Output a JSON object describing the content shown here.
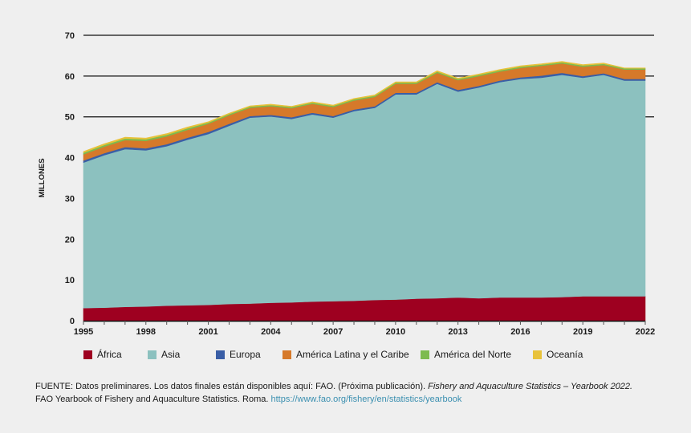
{
  "chart_data": {
    "type": "area",
    "stacked": true,
    "title": "",
    "xlabel": "",
    "ylabel": "MILLONES",
    "ylim": [
      0,
      70
    ],
    "yticks": [
      0,
      10,
      20,
      30,
      40,
      50,
      60,
      70
    ],
    "xlim": [
      1995,
      2022
    ],
    "xtick_labels": [
      "1995",
      "1998",
      "2001",
      "2004",
      "2007",
      "2010",
      "2013",
      "2016",
      "2019",
      "2022"
    ],
    "grid": "horizontal at 50, 60, 70",
    "legend_position": "bottom",
    "x": [
      1995,
      1996,
      1997,
      1998,
      1999,
      2000,
      2001,
      2002,
      2003,
      2004,
      2005,
      2006,
      2007,
      2008,
      2009,
      2010,
      2011,
      2012,
      2013,
      2014,
      2015,
      2016,
      2017,
      2018,
      2019,
      2020,
      2021,
      2022
    ],
    "series": [
      {
        "name": "África",
        "color": "#9e0020",
        "values": [
          3.1,
          3.2,
          3.4,
          3.5,
          3.7,
          3.8,
          3.9,
          4.1,
          4.2,
          4.4,
          4.5,
          4.7,
          4.8,
          4.9,
          5.1,
          5.2,
          5.4,
          5.5,
          5.7,
          5.5,
          5.7,
          5.7,
          5.7,
          5.8,
          6.0,
          6.0,
          6.0,
          6.0
        ]
      },
      {
        "name": "Asia",
        "color": "#8cc1bf",
        "values": [
          35.7,
          37.4,
          38.7,
          38.3,
          39.1,
          40.6,
          41.9,
          43.7,
          45.6,
          45.7,
          45.0,
          45.9,
          45.0,
          46.5,
          47.1,
          50.3,
          50.1,
          52.6,
          50.5,
          51.7,
          52.8,
          53.6,
          53.9,
          54.5,
          53.6,
          54.3,
          52.9,
          52.9
        ]
      },
      {
        "name": "Europa",
        "color": "#3a5ea6",
        "values": [
          0.5,
          0.5,
          0.5,
          0.5,
          0.5,
          0.5,
          0.5,
          0.5,
          0.4,
          0.4,
          0.4,
          0.4,
          0.4,
          0.4,
          0.4,
          0.4,
          0.4,
          0.4,
          0.4,
          0.4,
          0.4,
          0.4,
          0.5,
          0.5,
          0.4,
          0.4,
          0.4,
          0.4
        ]
      },
      {
        "name": "América Latina y el Caribe",
        "color": "#d6792a",
        "values": [
          1.5,
          1.6,
          1.7,
          1.8,
          1.9,
          1.9,
          2.0,
          2.1,
          2.0,
          2.1,
          2.2,
          2.2,
          2.2,
          2.2,
          2.3,
          2.2,
          2.2,
          2.3,
          2.4,
          2.4,
          2.2,
          2.3,
          2.4,
          2.3,
          2.3,
          2.0,
          2.3,
          2.3
        ]
      },
      {
        "name": "América del Norte",
        "color": "#7dbb4f",
        "values": [
          0.4,
          0.4,
          0.4,
          0.4,
          0.4,
          0.4,
          0.3,
          0.3,
          0.3,
          0.3,
          0.3,
          0.3,
          0.3,
          0.3,
          0.3,
          0.3,
          0.3,
          0.3,
          0.3,
          0.3,
          0.3,
          0.3,
          0.3,
          0.3,
          0.3,
          0.3,
          0.3,
          0.3
        ]
      },
      {
        "name": "Oceanía",
        "color": "#e8c23a",
        "values": [
          0.3,
          0.3,
          0.3,
          0.3,
          0.3,
          0.3,
          0.2,
          0.2,
          0.2,
          0.2,
          0.2,
          0.2,
          0.2,
          0.2,
          0.2,
          0.2,
          0.2,
          0.2,
          0.2,
          0.2,
          0.2,
          0.2,
          0.2,
          0.2,
          0.2,
          0.2,
          0.1,
          0.1
        ]
      }
    ]
  },
  "legend": [
    {
      "label": "África",
      "color": "#9e0020"
    },
    {
      "label": "Asia",
      "color": "#8cc1bf"
    },
    {
      "label": "Europa",
      "color": "#3a5ea6"
    },
    {
      "label": "América Latina y el Caribe",
      "color": "#d6792a"
    },
    {
      "label": "América del Norte",
      "color": "#7dbb4f"
    },
    {
      "label": "Oceanía",
      "color": "#e8c23a"
    }
  ],
  "source": {
    "prefix": "FUENTE: Datos preliminares. Los datos finales están disponibles aquí: FAO. (Próxima publicación). ",
    "italic": "Fishery and Aquaculture Statistics – Yearbook 2022.",
    "line2": "FAO Yearbook of Fishery and Aquaculture Statistics. Roma. ",
    "link": "https://www.fao.org/fishery/en/statistics/yearbook"
  }
}
